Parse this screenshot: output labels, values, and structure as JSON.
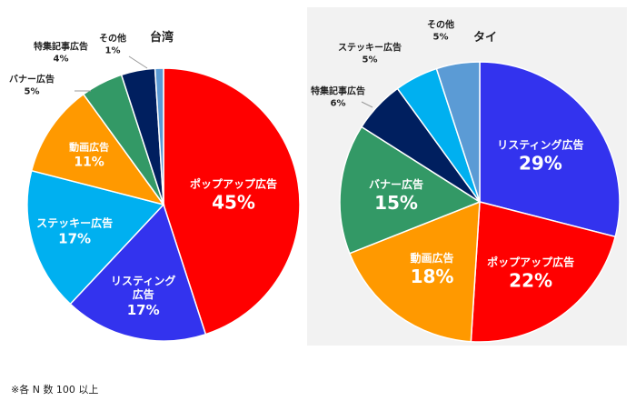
{
  "footnote": "※各 N 数 100 以上",
  "chart_data": [
    {
      "type": "pie",
      "title": "台湾",
      "unit": "%",
      "slices": [
        {
          "label": "ポップアップ広告",
          "value": 45,
          "display": "45%",
          "color": "#ff0000"
        },
        {
          "label": "リスティング広告",
          "value": 17,
          "display": "17%",
          "color": "#3333ee"
        },
        {
          "label": "ステッキー広告",
          "value": 17,
          "display": "17%",
          "color": "#00b0f0"
        },
        {
          "label": "動画広告",
          "value": 11,
          "display": "11%",
          "color": "#ff9900"
        },
        {
          "label": "バナー広告",
          "value": 5,
          "display": "5%",
          "color": "#339966"
        },
        {
          "label": "特集記事広告",
          "value": 4,
          "display": "4%",
          "color": "#001f5f"
        },
        {
          "label": "その他",
          "value": 1,
          "display": "1%",
          "color": "#5b9bd5"
        }
      ]
    },
    {
      "type": "pie",
      "title": "タイ",
      "unit": "%",
      "slices": [
        {
          "label": "リスティング広告",
          "value": 29,
          "display": "29%",
          "color": "#3333ee"
        },
        {
          "label": "ポップアップ広告",
          "value": 22,
          "display": "22%",
          "color": "#ff0000"
        },
        {
          "label": "動画広告",
          "value": 18,
          "display": "18%",
          "color": "#ff9900"
        },
        {
          "label": "バナー広告",
          "value": 15,
          "display": "15%",
          "color": "#339966"
        },
        {
          "label": "特集記事広告",
          "value": 6,
          "display": "6%",
          "color": "#001f5f"
        },
        {
          "label": "ステッキー広告",
          "value": 5,
          "display": "5%",
          "color": "#00b0f0"
        },
        {
          "label": "その他",
          "value": 5,
          "display": "5%",
          "color": "#5b9bd5"
        }
      ]
    }
  ]
}
